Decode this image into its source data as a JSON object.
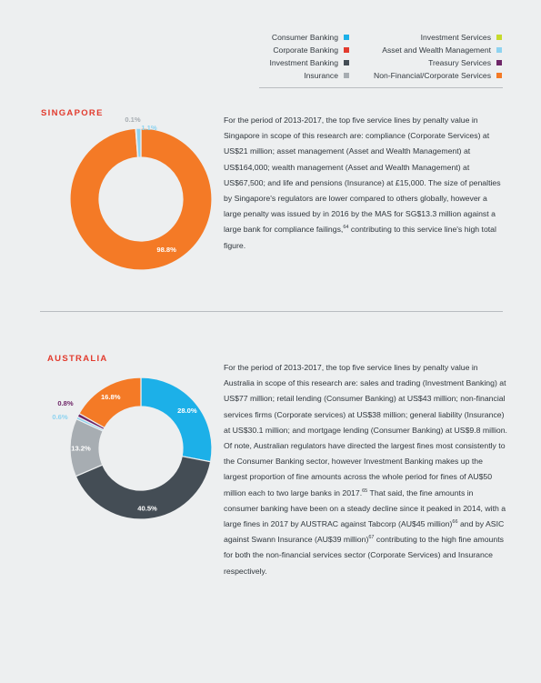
{
  "legend": {
    "left_column": [
      {
        "label": "Consumer Banking",
        "color": "#1cb0e8"
      },
      {
        "label": "Corporate Banking",
        "color": "#e23b2e"
      },
      {
        "label": "Investment Banking",
        "color": "#444d55"
      },
      {
        "label": "Insurance",
        "color": "#a7adb2"
      }
    ],
    "right_column": [
      {
        "label": "Investment Services",
        "color": "#c6da2c"
      },
      {
        "label": "Asset and Wealth Management",
        "color": "#8ed3f0"
      },
      {
        "label": "Treasury Services",
        "color": "#6e2668"
      },
      {
        "label": "Non-Financial/Corporate Services",
        "color": "#f47a26"
      }
    ]
  },
  "singapore": {
    "title": "SINGAPORE",
    "text": "For the period of 2013-2017, the top five service lines by penalty value in Singapore in scope of this research are: compliance (Corporate Services) at US$21 million; asset management (Asset and Wealth Management) at US$164,000; wealth management (Asset and Wealth Management) at US$67,500; and life and pensions (Insurance) at £15,000. The size of penalties by Singapore's regulators are lower compared to others globally, however a large penalty was issued by in 2016 by the MAS for SG$13.3 million against a large bank for compliance failings,",
    "footnote": "64",
    "text_end": " contributing to this service line's high total figure."
  },
  "australia": {
    "title": "AUSTRALIA",
    "text_1": "For the period of 2013-2017, the top five service lines by penalty value in Australia in scope of this research are: sales and trading (Investment Banking) at US$77 million; retail lending (Consumer Banking) at US$43 million; non-financial services firms (Corporate services) at US$38 million; general liability (Insurance) at US$30.1 million; and mortgage lending (Consumer Banking) at US$9.8 million. Of note, Australian regulators have directed the largest fines most consistently to the Consumer Banking sector, however Investment Banking makes up the largest proportion of fine amounts across the whole period for fines of AU$50 million each to two large banks in 2017.",
    "fn_1": "65",
    "text_2": " That said, the fine amounts in consumer banking have been on a steady decline since it peaked in 2014, with a large fines in 2017 by AUSTRAC against Tabcorp (AU$45 million)",
    "fn_2": "66",
    "text_3": " and by ASIC against Swann Insurance (AU$39 million)",
    "fn_3": "67",
    "text_4": " contributing to the high fine amounts for both the non-financial services sector (Corporate Services) and Insurance respectively."
  },
  "chart_data": [
    {
      "type": "pie",
      "donut": true,
      "title": "",
      "slices": [
        {
          "label": "Non-Financial/Corporate Services",
          "value": 98.8,
          "display": "98.8%",
          "color": "#f47a26"
        },
        {
          "label": "Investment Banking",
          "value": 0.1,
          "display": "0.1%",
          "color": "#444d55"
        },
        {
          "label": "Asset and Wealth Management",
          "value": 1.1,
          "display": "1.1%",
          "color": "#8ed3f0"
        }
      ]
    },
    {
      "type": "pie",
      "donut": true,
      "title": "",
      "slices": [
        {
          "label": "Consumer Banking",
          "value": 28.0,
          "display": "28.0%",
          "color": "#1cb0e8"
        },
        {
          "label": "Investment Banking",
          "value": 40.5,
          "display": "40.5%",
          "color": "#444d55"
        },
        {
          "label": "Insurance",
          "value": 13.2,
          "display": "13.2%",
          "color": "#a7adb2"
        },
        {
          "label": "Asset and Wealth Management",
          "value": 0.6,
          "display": "0.6%",
          "color": "#8ed3f0"
        },
        {
          "label": "Treasury Services",
          "value": 0.8,
          "display": "0.8%",
          "color": "#6e2668"
        },
        {
          "label": "Non-Financial/Corporate Services",
          "value": 16.8,
          "display": "16.8%",
          "color": "#f47a26"
        }
      ]
    }
  ]
}
